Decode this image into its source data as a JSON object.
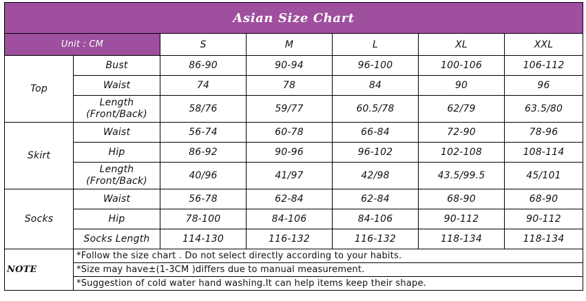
{
  "title": "Asian Size Chart",
  "unit_label": "Unit : CM",
  "sizes": [
    "S",
    "M",
    "L",
    "XL",
    "XXL"
  ],
  "groups": [
    {
      "name": "Top",
      "rows": [
        {
          "label": "Bust",
          "values": [
            "86-90",
            "90-94",
            "96-100",
            "100-106",
            "106-112"
          ]
        },
        {
          "label": "Waist",
          "values": [
            "74",
            "78",
            "84",
            "90",
            "96"
          ]
        },
        {
          "label_line1": "Length",
          "label_line2": "(Front/Back)",
          "values": [
            "58/76",
            "59/77",
            "60.5/78",
            "62/79",
            "63.5/80"
          ]
        }
      ]
    },
    {
      "name": "Skirt",
      "rows": [
        {
          "label": "Waist",
          "values": [
            "56-74",
            "60-78",
            "66-84",
            "72-90",
            "78-96"
          ]
        },
        {
          "label": "Hip",
          "values": [
            "86-92",
            "90-96",
            "96-102",
            "102-108",
            "108-114"
          ]
        },
        {
          "label_line1": "Length",
          "label_line2": "(Front/Back)",
          "values": [
            "40/96",
            "41/97",
            "42/98",
            "43.5/99.5",
            "45/101"
          ]
        }
      ]
    },
    {
      "name": "Socks",
      "rows": [
        {
          "label": "Waist",
          "values": [
            "56-78",
            "62-84",
            "62-84",
            "68-90",
            "68-90"
          ]
        },
        {
          "label": "Hip",
          "values": [
            "78-100",
            "84-106",
            "84-106",
            "90-112",
            "90-112"
          ]
        },
        {
          "label": "Socks Length",
          "values": [
            "114-130",
            "116-132",
            "116-132",
            "118-134",
            "118-134"
          ]
        }
      ]
    }
  ],
  "note": {
    "label": "NOTE",
    "lines": [
      "*Follow the size chart . Do not select directly according to your habits.",
      "*Size may have±(1-3CM )differs due to manual measurement.",
      "*Suggestion of cold water hand washing.It can help items keep their shape."
    ]
  },
  "colors": {
    "header_bg": "#9e4f9e",
    "header_text": "#ffffff",
    "border": "#000000"
  }
}
